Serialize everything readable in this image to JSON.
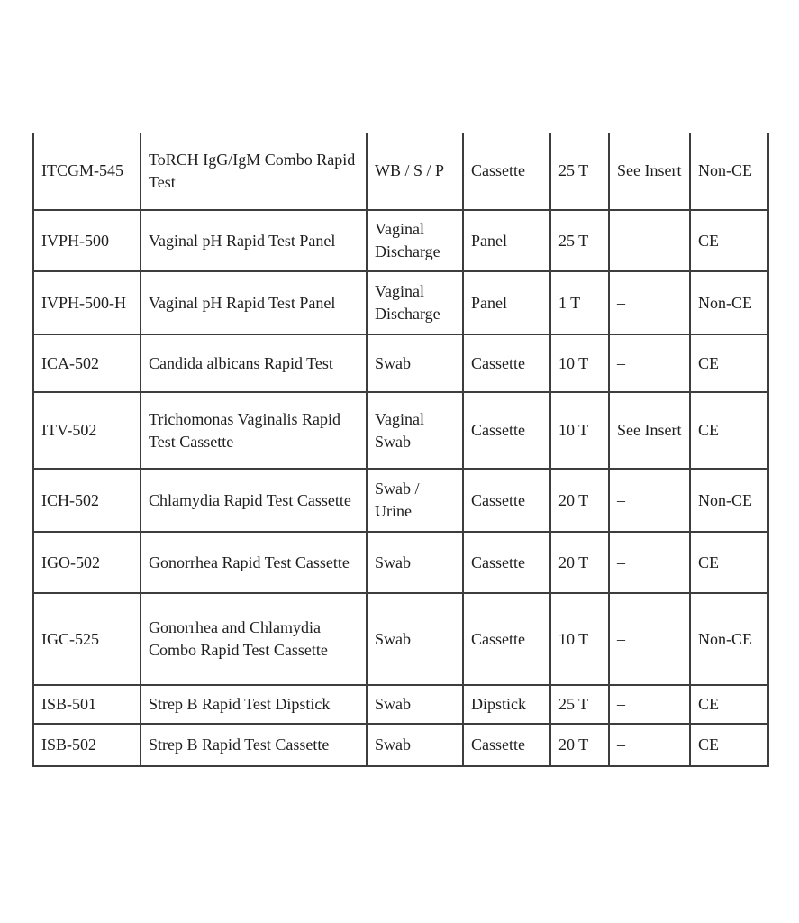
{
  "page": {
    "background_color": "#ffffff",
    "text_color": "#1e1e1e",
    "border_color": "#3d3d3d"
  },
  "table": {
    "description": "product catalog table (header row not visible, cropped)",
    "rows": [
      [
        "ITCGM-545",
        "ToRCH IgG/IgM Combo Rapid Test",
        "WB / S / P",
        "Cassette",
        "25 T",
        "See Insert",
        "Non-CE"
      ],
      [
        "IVPH-500",
        "Vaginal pH Rapid Test Panel",
        "Vaginal Discharge",
        "Panel",
        "25 T",
        "–",
        "CE"
      ],
      [
        "IVPH-500-H",
        "Vaginal pH Rapid Test Panel",
        "Vaginal Discharge",
        "Panel",
        "1 T",
        "–",
        "Non-CE"
      ],
      [
        "ICA-502",
        "Candida albicans Rapid Test",
        "Swab",
        "Cassette",
        "10 T",
        "–",
        "CE"
      ],
      [
        "ITV-502",
        "Trichomonas Vaginalis Rapid Test Cassette",
        "Vaginal Swab",
        "Cassette",
        "10 T",
        "See Insert",
        "CE"
      ],
      [
        "ICH-502",
        "Chlamydia Rapid Test Cassette",
        "Swab / Urine",
        "Cassette",
        "20 T",
        "–",
        "Non-CE"
      ],
      [
        "IGO-502",
        "Gonorrhea Rapid Test Cassette",
        "Swab",
        "Cassette",
        "20 T",
        "–",
        "CE"
      ],
      [
        "IGC-525",
        "Gonorrhea and Chlamydia Combo Rapid Test Cassette",
        "Swab",
        "Cassette",
        "10 T",
        "–",
        "Non-CE"
      ],
      [
        "ISB-501",
        "Strep B Rapid Test Dipstick",
        "Swab",
        "Dipstick",
        "25 T",
        "–",
        "CE"
      ],
      [
        "ISB-502",
        "Strep B Rapid Test Cassette",
        "Swab",
        "Cassette",
        "20 T",
        "–",
        "CE"
      ]
    ]
  }
}
